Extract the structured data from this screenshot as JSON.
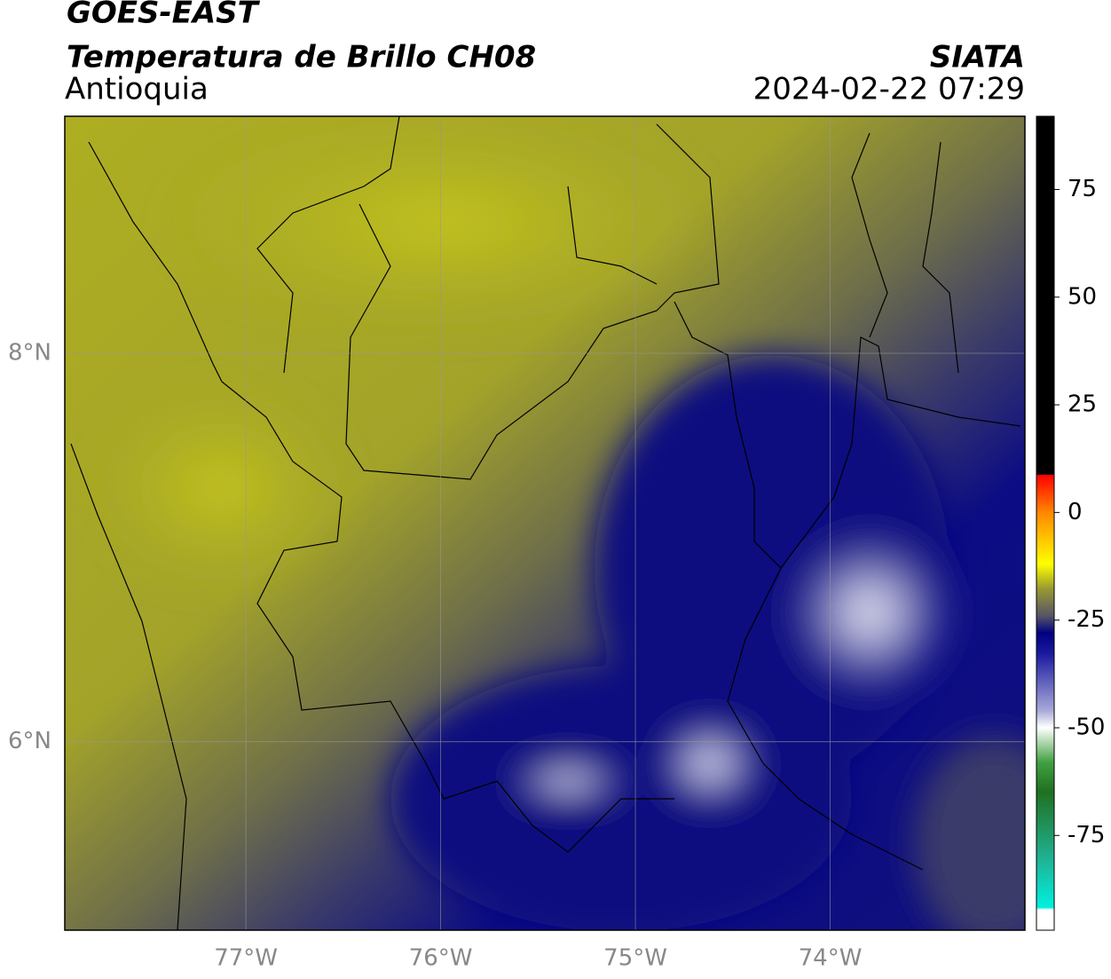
{
  "header": {
    "title": "GOES-EAST",
    "subtitle": "Temperatura de Brillo CH08",
    "region": "Antioquia",
    "source": "SIATA",
    "datetime": "2024-02-22 07:29"
  },
  "map": {
    "xlim": [
      -77.93,
      -73.0
    ],
    "ylim": [
      5.03,
      9.22
    ],
    "xticks": [
      {
        "value": -77,
        "label": "77°W"
      },
      {
        "value": -76,
        "label": "76°W"
      },
      {
        "value": -75,
        "label": "75°W"
      },
      {
        "value": -74,
        "label": "74°W"
      }
    ],
    "yticks": [
      {
        "value": 8,
        "label": "8°N"
      },
      {
        "value": 6,
        "label": "6°N"
      }
    ],
    "grid": true
  },
  "colorbar": {
    "lim": [
      -97,
      92
    ],
    "ticks": [
      75,
      50,
      25,
      0,
      -25,
      -50,
      -75
    ]
  }
}
